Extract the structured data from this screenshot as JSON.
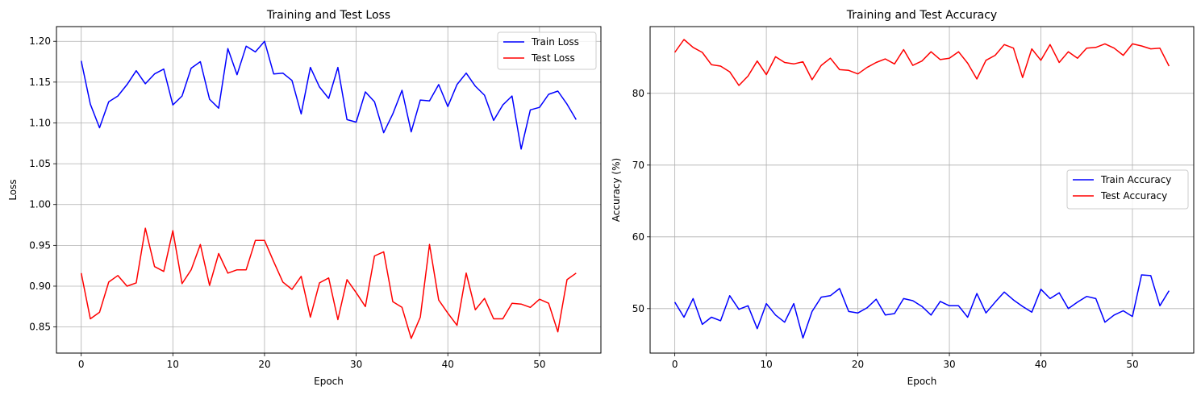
{
  "chart_data": [
    {
      "type": "line",
      "title": "Training and Test Loss",
      "xlabel": "Epoch",
      "ylabel": "Loss",
      "xlim": [
        -2.7,
        56.7
      ],
      "ylim": [
        0.818,
        1.218
      ],
      "xticks": [
        0,
        10,
        20,
        30,
        40,
        50
      ],
      "yticks": [
        0.85,
        0.9,
        0.95,
        1.0,
        1.05,
        1.1,
        1.15,
        1.2
      ],
      "xtick_labels": [
        "0",
        "10",
        "20",
        "30",
        "40",
        "50"
      ],
      "ytick_labels": [
        "0.85",
        "0.90",
        "0.95",
        "1.00",
        "1.05",
        "1.10",
        "1.15",
        "1.20"
      ],
      "grid": true,
      "legend_position": "top-right",
      "x": [
        0,
        1,
        2,
        3,
        4,
        5,
        6,
        7,
        8,
        9,
        10,
        11,
        12,
        13,
        14,
        15,
        16,
        17,
        18,
        19,
        20,
        21,
        22,
        23,
        24,
        25,
        26,
        27,
        28,
        29,
        30,
        31,
        32,
        33,
        34,
        35,
        36,
        37,
        38,
        39,
        40,
        41,
        42,
        43,
        44,
        45,
        46,
        47,
        48,
        49,
        50,
        51,
        52,
        53,
        54
      ],
      "series": [
        {
          "name": "Train Loss",
          "color": "#0000ff",
          "values": [
            1.176,
            1.123,
            1.094,
            1.126,
            1.133,
            1.147,
            1.164,
            1.148,
            1.16,
            1.166,
            1.122,
            1.133,
            1.167,
            1.175,
            1.129,
            1.118,
            1.191,
            1.159,
            1.194,
            1.187,
            1.2,
            1.16,
            1.161,
            1.152,
            1.111,
            1.168,
            1.144,
            1.13,
            1.168,
            1.104,
            1.101,
            1.138,
            1.126,
            1.088,
            1.111,
            1.14,
            1.089,
            1.128,
            1.127,
            1.147,
            1.12,
            1.147,
            1.161,
            1.145,
            1.134,
            1.103,
            1.122,
            1.133,
            1.068,
            1.116,
            1.119,
            1.135,
            1.139,
            1.123,
            1.104
          ]
        },
        {
          "name": "Test Loss",
          "color": "#ff0000",
          "values": [
            0.916,
            0.86,
            0.868,
            0.905,
            0.913,
            0.9,
            0.904,
            0.971,
            0.924,
            0.918,
            0.968,
            0.903,
            0.92,
            0.951,
            0.901,
            0.94,
            0.916,
            0.92,
            0.92,
            0.956,
            0.956,
            0.93,
            0.905,
            0.896,
            0.912,
            0.862,
            0.904,
            0.91,
            0.859,
            0.908,
            0.892,
            0.875,
            0.937,
            0.942,
            0.881,
            0.874,
            0.836,
            0.862,
            0.951,
            0.883,
            0.867,
            0.852,
            0.916,
            0.871,
            0.885,
            0.86,
            0.86,
            0.879,
            0.878,
            0.874,
            0.884,
            0.879,
            0.844,
            0.908,
            0.916
          ]
        }
      ]
    },
    {
      "type": "line",
      "title": "Training and Test Accuracy",
      "xlabel": "Epoch",
      "ylabel": "Accuracy (%)",
      "xlim": [
        -2.7,
        56.7
      ],
      "ylim": [
        43.8,
        89.3
      ],
      "xticks": [
        0,
        10,
        20,
        30,
        40,
        50
      ],
      "yticks": [
        50,
        60,
        70,
        80
      ],
      "xtick_labels": [
        "0",
        "10",
        "20",
        "30",
        "40",
        "50"
      ],
      "ytick_labels": [
        "50",
        "60",
        "70",
        "80"
      ],
      "grid": true,
      "legend_position": "center-right",
      "x": [
        0,
        1,
        2,
        3,
        4,
        5,
        6,
        7,
        8,
        9,
        10,
        11,
        12,
        13,
        14,
        15,
        16,
        17,
        18,
        19,
        20,
        21,
        22,
        23,
        24,
        25,
        26,
        27,
        28,
        29,
        30,
        31,
        32,
        33,
        34,
        35,
        36,
        37,
        38,
        39,
        40,
        41,
        42,
        43,
        44,
        45,
        46,
        47,
        48,
        49,
        50,
        51,
        52,
        53,
        54
      ],
      "series": [
        {
          "name": "Train Accuracy",
          "color": "#0000ff",
          "values": [
            50.9,
            48.8,
            51.4,
            47.8,
            48.8,
            48.3,
            51.8,
            49.9,
            50.4,
            47.2,
            50.7,
            49.1,
            48.1,
            50.7,
            45.9,
            49.6,
            51.6,
            51.8,
            52.8,
            49.6,
            49.4,
            50.1,
            51.3,
            49.1,
            49.3,
            51.4,
            51.1,
            50.3,
            49.1,
            51.0,
            50.4,
            50.4,
            48.8,
            52.1,
            49.4,
            50.9,
            52.3,
            51.2,
            50.3,
            49.5,
            52.7,
            51.4,
            52.2,
            50.0,
            50.9,
            51.7,
            51.4,
            48.1,
            49.1,
            49.7,
            48.9,
            54.7,
            54.6,
            50.4,
            52.5
          ]
        },
        {
          "name": "Test Accuracy",
          "color": "#ff0000",
          "values": [
            85.7,
            87.5,
            86.4,
            85.7,
            84.0,
            83.8,
            83.0,
            81.1,
            82.4,
            84.5,
            82.6,
            85.1,
            84.3,
            84.1,
            84.4,
            81.9,
            83.9,
            84.9,
            83.3,
            83.2,
            82.7,
            83.6,
            84.3,
            84.8,
            84.1,
            86.1,
            83.9,
            84.5,
            85.8,
            84.7,
            84.9,
            85.8,
            84.2,
            82.0,
            84.6,
            85.3,
            86.8,
            86.3,
            82.2,
            86.2,
            84.6,
            86.8,
            84.3,
            85.8,
            84.9,
            86.3,
            86.4,
            86.9,
            86.3,
            85.3,
            86.9,
            86.6,
            86.2,
            86.3,
            83.8
          ]
        }
      ]
    }
  ]
}
